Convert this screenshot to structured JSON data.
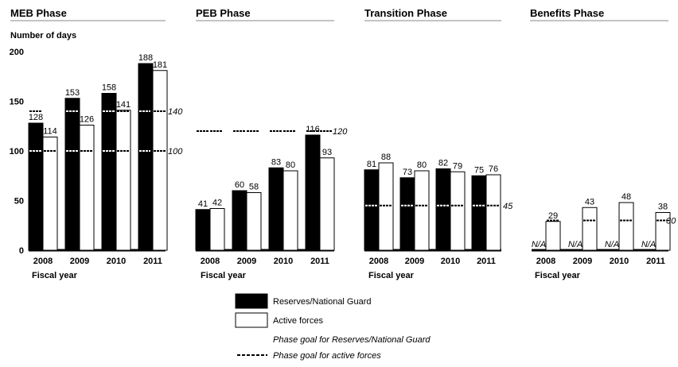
{
  "colors": {
    "reserves": "#000000",
    "active": "#ffffff",
    "line": "#888888"
  },
  "ylabel": "Number of days",
  "xlabel": "Fiscal year",
  "legend": {
    "reserves": "Reserves/National Guard",
    "active": "Active forces",
    "goal_reserves": "Phase goal for Reserves/National Guard",
    "goal_active": "Phase goal for active forces"
  },
  "chart_data": [
    {
      "type": "bar",
      "title": "MEB Phase",
      "categories": [
        "2008",
        "2009",
        "2010",
        "2011"
      ],
      "series": [
        {
          "name": "Reserves/National Guard",
          "values": [
            128,
            153,
            158,
            188
          ]
        },
        {
          "name": "Active forces",
          "values": [
            114,
            126,
            141,
            181
          ]
        }
      ],
      "goal_reserves": 140,
      "goal_active": 100,
      "goal_reserves_label": "140",
      "goal_active_label": "100",
      "ylim": [
        0,
        200
      ],
      "yticks": [
        0,
        50,
        100,
        150,
        200
      ]
    },
    {
      "type": "bar",
      "title": "PEB Phase",
      "categories": [
        "2008",
        "2009",
        "2010",
        "2011"
      ],
      "series": [
        {
          "name": "Reserves/National Guard",
          "values": [
            41,
            60,
            83,
            116
          ]
        },
        {
          "name": "Active forces",
          "values": [
            42,
            58,
            80,
            93
          ]
        }
      ],
      "goal_reserves": 120,
      "goal_active": null,
      "goal_reserves_label": "120",
      "goal_active_label": "",
      "ylim": [
        0,
        200
      ]
    },
    {
      "type": "bar",
      "title": "Transition Phase",
      "categories": [
        "2008",
        "2009",
        "2010",
        "2011"
      ],
      "series": [
        {
          "name": "Reserves/National Guard",
          "values": [
            81,
            73,
            82,
            75
          ]
        },
        {
          "name": "Active forces",
          "values": [
            88,
            80,
            79,
            76
          ]
        }
      ],
      "goal_reserves": null,
      "goal_active": 45,
      "goal_reserves_label": "",
      "goal_active_label": "45",
      "ylim": [
        0,
        200
      ]
    },
    {
      "type": "bar",
      "title": "Benefits Phase",
      "categories": [
        "2008",
        "2009",
        "2010",
        "2011"
      ],
      "series": [
        {
          "name": "Reserves/National Guard",
          "values": [
            null,
            null,
            null,
            null
          ],
          "labels": [
            "N/A",
            "N/A",
            "N/A",
            "N/A"
          ]
        },
        {
          "name": "Active forces",
          "values": [
            29,
            43,
            48,
            38
          ]
        }
      ],
      "goal_reserves": null,
      "goal_active": 30,
      "goal_reserves_label": "",
      "goal_active_label": "30",
      "ylim": [
        0,
        200
      ]
    }
  ]
}
